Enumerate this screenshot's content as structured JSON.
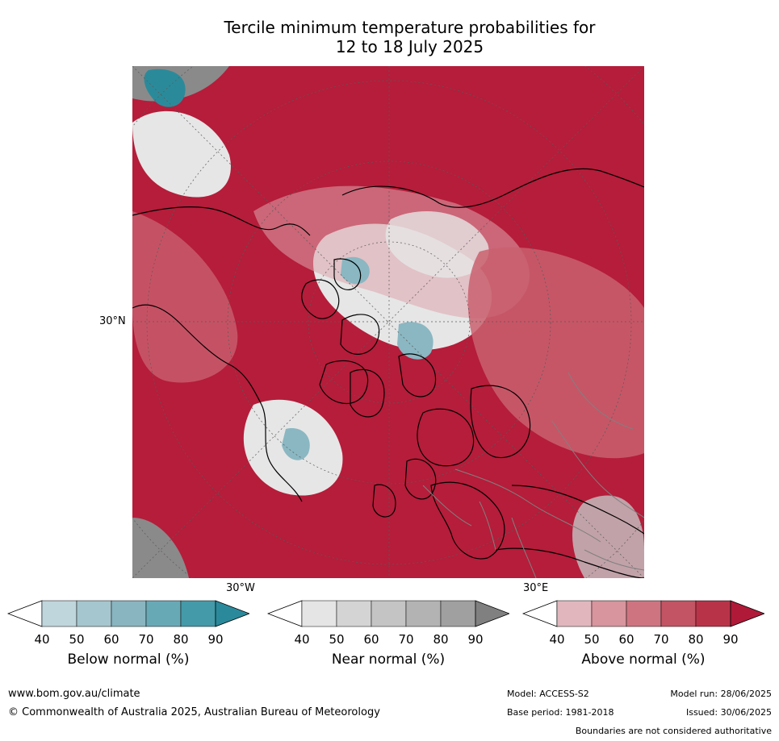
{
  "title_line1": "Tercile minimum temperature probabilities for",
  "title_line2": "12 to 18 July 2025",
  "map": {
    "lat_label": "30°N",
    "lon_label_left": "30°W",
    "lon_label_right": "30°E",
    "colors": {
      "above_dark": "#b51d3a",
      "above_mid": "#c9606f",
      "above_light": "#dca4ac",
      "near_light": "#e6e6e6",
      "near_mid": "#c4c4c4",
      "near_dark": "#8a8a8a",
      "below_mid": "#8ab7c2",
      "below_dark": "#2b8a9a",
      "coast": "#000000",
      "borders": "#808080"
    }
  },
  "legend": [
    {
      "label": "Below normal (%)",
      "ticks": [
        "40",
        "50",
        "60",
        "70",
        "80",
        "90"
      ],
      "colors": [
        "#ffffff",
        "#bfd6dc",
        "#a5c6ce",
        "#89b5c0",
        "#68a9b6",
        "#449aa8",
        "#2a8a9b"
      ]
    },
    {
      "label": "Near normal (%)",
      "ticks": [
        "40",
        "50",
        "60",
        "70",
        "80",
        "90"
      ],
      "colors": [
        "#ffffff",
        "#e5e5e5",
        "#d4d4d4",
        "#c4c4c4",
        "#b3b3b3",
        "#a0a0a0",
        "#808080"
      ]
    },
    {
      "label": "Above normal (%)",
      "ticks": [
        "40",
        "50",
        "60",
        "70",
        "80",
        "90"
      ],
      "colors": [
        "#ffffff",
        "#e1b7bd",
        "#d8959e",
        "#ce7480",
        "#c25463",
        "#b93348",
        "#b01a38"
      ]
    }
  ],
  "footer": {
    "website": "www.bom.gov.au/climate",
    "copyright": "© Commonwealth of Australia 2025, Australian Bureau of Meteorology",
    "model": "Model: ACCESS-S2",
    "base_period": "Base period: 1981-2018",
    "model_run": "Model run: 28/06/2025",
    "issued": "Issued: 30/06/2025",
    "disclaimer": "Boundaries are not considered authoritative"
  }
}
